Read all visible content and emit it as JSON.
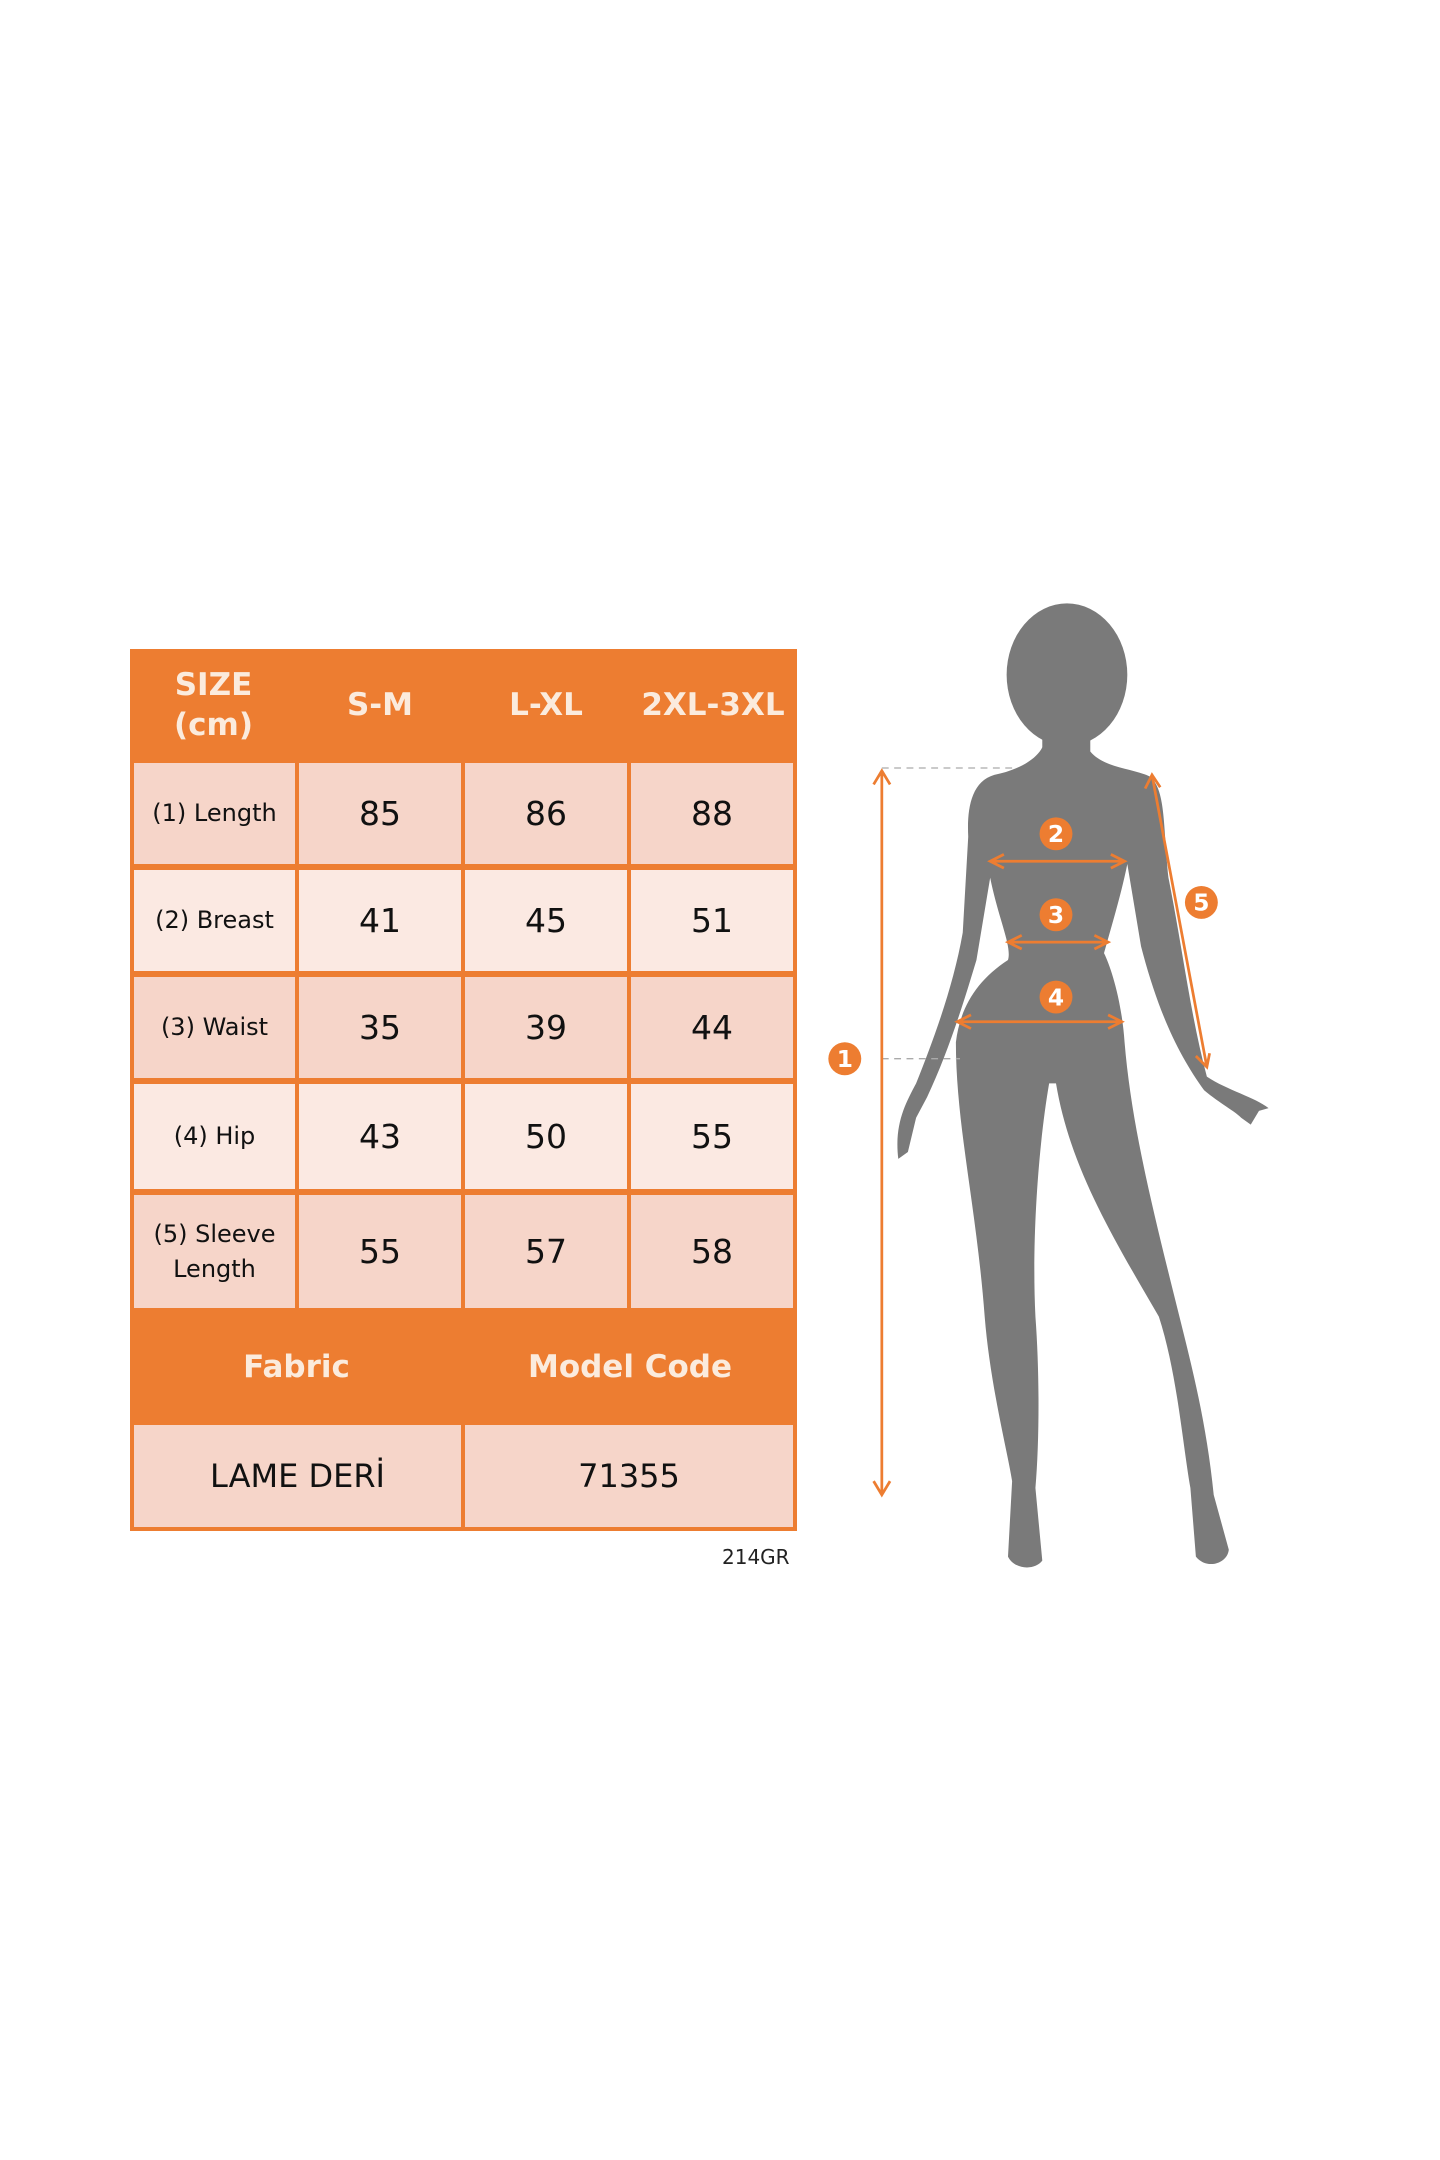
{
  "colors": {
    "accent": "#ED7D31",
    "cell_dark": "#F6D5C9",
    "cell_light": "#FBE9E2",
    "silhouette": "#7A7A7A"
  },
  "table": {
    "header": {
      "size_label": "SIZE\n(cm)",
      "sizes": [
        "S-M",
        "L-XL",
        "2XL-3XL"
      ]
    },
    "rows": [
      {
        "label": "(1) Length",
        "values": [
          "85",
          "86",
          "88"
        ]
      },
      {
        "label": "(2) Breast",
        "values": [
          "41",
          "45",
          "51"
        ]
      },
      {
        "label": "(3) Waist",
        "values": [
          "35",
          "39",
          "44"
        ]
      },
      {
        "label": "(4) Hip",
        "values": [
          "43",
          "50",
          "55"
        ]
      },
      {
        "label": "(5) Sleeve\nLength",
        "values": [
          "55",
          "57",
          "58"
        ]
      }
    ],
    "footer_headers": [
      "Fabric",
      "Model Code"
    ],
    "footer_values": [
      "LAME DERİ",
      "71355"
    ]
  },
  "product_code": "214GR",
  "figure": {
    "markers": [
      "1",
      "2",
      "3",
      "4",
      "5"
    ]
  }
}
